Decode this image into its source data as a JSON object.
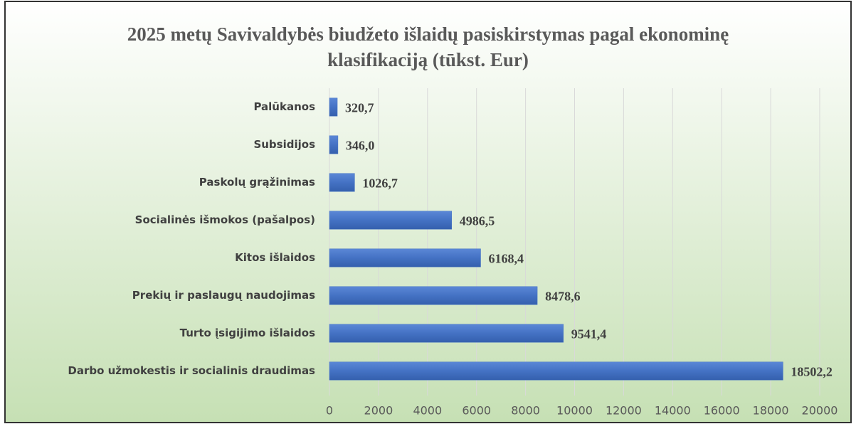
{
  "chart_data": {
    "type": "barh",
    "title": "2025 metų Savivaldybės biudžeto išlaidų pasiskirstymas pagal ekonominę klasifikaciją (tūkst. Eur)",
    "categories": [
      "Palūkanos",
      "Subsidijos",
      "Paskolų grąžinimas",
      "Socialinės išmokos (pašalpos)",
      "Kitos išlaidos",
      "Prekių ir paslaugų naudojimas",
      "Turto įsigijimo išlaidos",
      "Darbo užmokestis ir socialinis draudimas"
    ],
    "values": [
      320.7,
      346.0,
      1026.7,
      4986.5,
      6168.4,
      8478.6,
      9541.4,
      18502.2
    ],
    "value_labels": [
      "320,7",
      "346,0",
      "1026,7",
      "4986,5",
      "6168,4",
      "8478,6",
      "9541,4",
      "18502,2"
    ],
    "color": "#4472c4",
    "xlim": [
      0,
      20000
    ],
    "xticks": [
      0,
      2000,
      4000,
      6000,
      8000,
      10000,
      12000,
      14000,
      16000,
      18000,
      20000
    ],
    "grid": true
  }
}
